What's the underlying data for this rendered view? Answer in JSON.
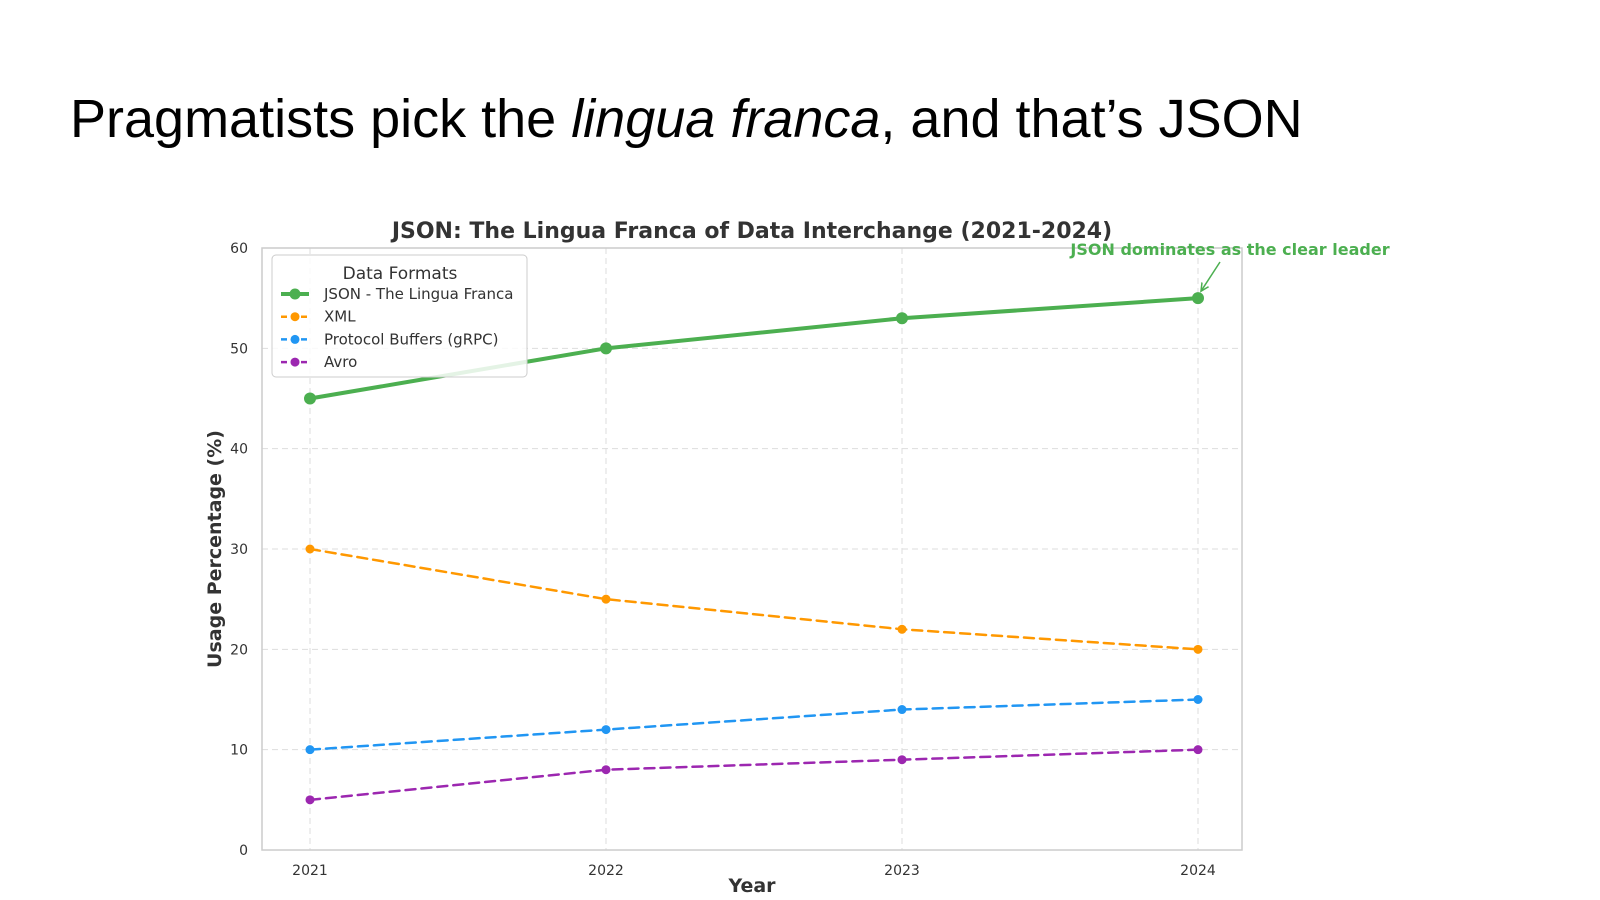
{
  "slide": {
    "title_before": "Pragmatists pick the ",
    "title_emphasis": "lingua franca",
    "title_after": ", and that’s JSON"
  },
  "chart_data": {
    "type": "line",
    "title": "JSON: The Lingua Franca of Data Interchange (2021-2024)",
    "xlabel": "Year",
    "ylabel": "Usage Percentage (%)",
    "x": [
      "2021",
      "2022",
      "2023",
      "2024"
    ],
    "ylim": [
      0,
      60
    ],
    "yticks": [
      0,
      10,
      20,
      30,
      40,
      50,
      60
    ],
    "grid": true,
    "legend": {
      "title": "Data Formats",
      "placement": "top-left"
    },
    "series": [
      {
        "name": "JSON - The Lingua Franca",
        "values": [
          45,
          50,
          53,
          55
        ],
        "color": "#4caf50",
        "style": "solid"
      },
      {
        "name": "XML",
        "values": [
          30,
          25,
          22,
          20
        ],
        "color": "#ff9800",
        "style": "dashed"
      },
      {
        "name": "Protocol Buffers (gRPC)",
        "values": [
          10,
          12,
          14,
          15
        ],
        "color": "#2196f3",
        "style": "dashed"
      },
      {
        "name": "Avro",
        "values": [
          5,
          8,
          9,
          10
        ],
        "color": "#9c27b0",
        "style": "dashed"
      }
    ],
    "annotation": {
      "text": "JSON dominates as the clear leader",
      "series": 0,
      "point": 3,
      "color": "#4caf50"
    }
  }
}
